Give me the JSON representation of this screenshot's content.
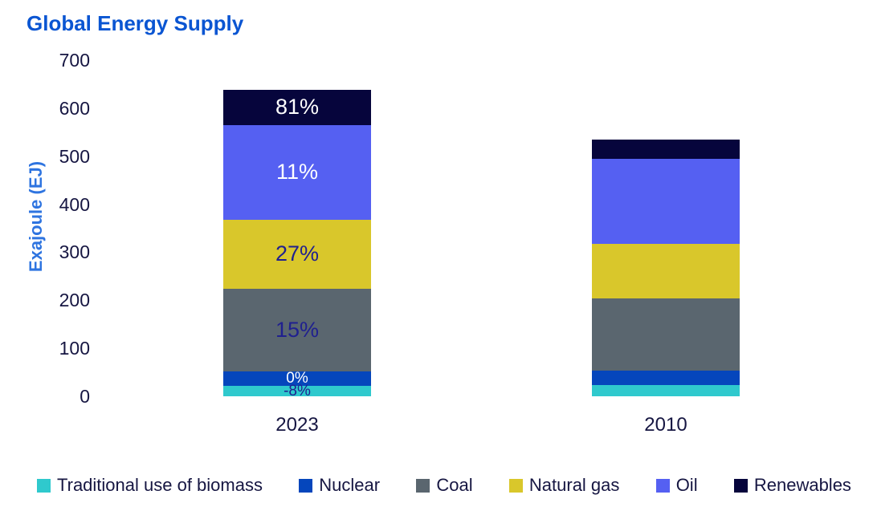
{
  "title": "Global Energy Supply",
  "chart_data": {
    "type": "bar",
    "stacked": true,
    "title": "Global Energy Supply",
    "ylabel": "Exajoule (EJ)",
    "ylim": [
      0,
      700
    ],
    "yticks": [
      0,
      100,
      200,
      300,
      400,
      500,
      600,
      700
    ],
    "grid": false,
    "categories": [
      "2023",
      "2010"
    ],
    "unit": "EJ",
    "series": [
      {
        "name": "Traditional use of biomass",
        "color": "#2FC9CD",
        "values": [
          21,
          23
        ],
        "change_label": "-8%",
        "label_size": "small",
        "label_tone": "dark"
      },
      {
        "name": "Nuclear",
        "color": "#0546BC",
        "values": [
          30,
          30
        ],
        "change_label": "0%",
        "label_size": "small",
        "label_tone": "light"
      },
      {
        "name": "Coal",
        "color": "#5A666F",
        "values": [
          173,
          151
        ],
        "change_label": "15%",
        "label_size": "big",
        "label_tone": "dark"
      },
      {
        "name": "Natural gas",
        "color": "#D9C72B",
        "values": [
          144,
          113
        ],
        "change_label": "27%",
        "label_size": "big",
        "label_tone": "dark"
      },
      {
        "name": "Oil",
        "color": "#5560F2",
        "values": [
          197,
          177
        ],
        "change_label": "11%",
        "label_size": "big",
        "label_tone": "light"
      },
      {
        "name": "Renewables",
        "color": "#06053C",
        "values": [
          74,
          41
        ],
        "change_label": "81%",
        "label_size": "big",
        "label_tone": "light"
      }
    ],
    "legend": [
      "Traditional use of biomass",
      "Nuclear",
      "Coal",
      "Natural gas",
      "Oil",
      "Renewables"
    ],
    "legend_position": "bottom",
    "change_labels_on_category": "2023"
  },
  "colors": {
    "title_text": "#0A55D2",
    "axis_title_text": "#2E74E0",
    "tick_text": "#161642",
    "label_dark": "#20208F",
    "label_light": "#FFFFFF"
  }
}
